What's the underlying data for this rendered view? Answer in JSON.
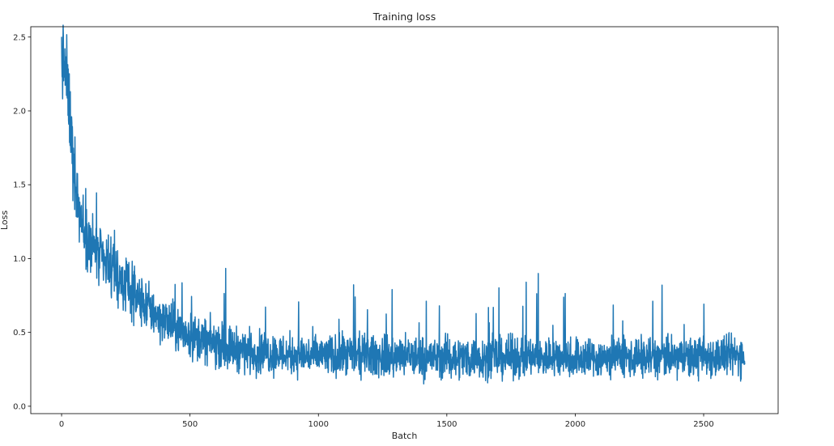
{
  "chart_data": {
    "type": "line",
    "title": "Training loss",
    "xlabel": "Batch",
    "ylabel": "Loss",
    "xlim": [
      -120,
      2790
    ],
    "ylim": [
      -0.05,
      2.57
    ],
    "x_ticks": [
      0,
      500,
      1000,
      1500,
      2000,
      2500
    ],
    "x_tick_labels": [
      "0",
      "500",
      "1000",
      "1500",
      "2000",
      "2500"
    ],
    "y_ticks": [
      0.0,
      0.5,
      1.0,
      1.5,
      2.0,
      2.5
    ],
    "y_tick_labels": [
      "0.0",
      "0.5",
      "1.0",
      "1.5",
      "2.0",
      "2.5"
    ],
    "grid": false,
    "legend": "none",
    "line_color": "#1f77b4",
    "series": [
      {
        "x": [
          0,
          10,
          20,
          30,
          40,
          50,
          60,
          70,
          80,
          90,
          100,
          125,
          150,
          175,
          200,
          250,
          300,
          350,
          400,
          450,
          500,
          600,
          700,
          800,
          900,
          1000,
          1200,
          1400,
          1600,
          1800,
          2000,
          2200,
          2400,
          2600,
          2660
        ],
        "y": [
          2.35,
          2.3,
          2.22,
          2.0,
          1.8,
          1.6,
          1.45,
          1.35,
          1.25,
          1.2,
          1.15,
          1.08,
          1.0,
          0.95,
          0.9,
          0.82,
          0.72,
          0.65,
          0.58,
          0.52,
          0.48,
          0.42,
          0.38,
          0.36,
          0.35,
          0.34,
          0.34,
          0.33,
          0.33,
          0.33,
          0.33,
          0.33,
          0.33,
          0.34,
          0.35
        ]
      }
    ]
  }
}
